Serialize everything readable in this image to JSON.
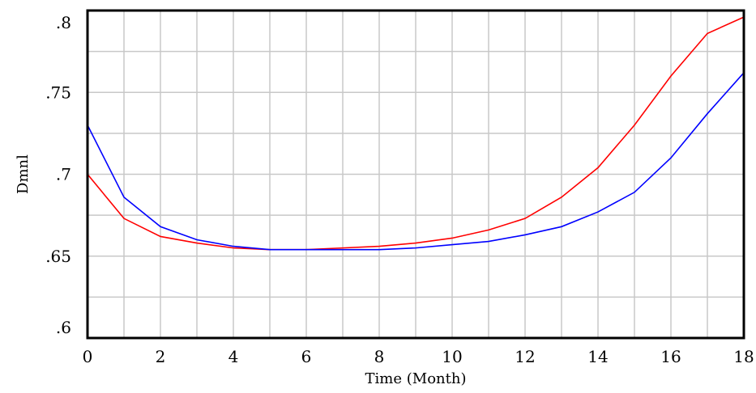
{
  "chart_data": {
    "type": "line",
    "title": "",
    "xlabel": "Time (Month)",
    "ylabel": "Dmnl",
    "xlim": [
      0,
      18
    ],
    "ylim": [
      0.6,
      0.8
    ],
    "grid": true,
    "x_ticks": [
      {
        "value": 0,
        "label": "0"
      },
      {
        "value": 2,
        "label": "2"
      },
      {
        "value": 4,
        "label": "4"
      },
      {
        "value": 6,
        "label": "6"
      },
      {
        "value": 8,
        "label": "8"
      },
      {
        "value": 10,
        "label": "10"
      },
      {
        "value": 12,
        "label": "12"
      },
      {
        "value": 14,
        "label": "14"
      },
      {
        "value": 16,
        "label": "16"
      },
      {
        "value": 18,
        "label": "18"
      }
    ],
    "y_ticks": [
      {
        "value": 0.6,
        "label": ".6"
      },
      {
        "value": 0.65,
        "label": ".65"
      },
      {
        "value": 0.7,
        "label": ".7"
      },
      {
        "value": 0.75,
        "label": ".75"
      },
      {
        "value": 0.8,
        "label": ".8"
      }
    ],
    "x": [
      0,
      1,
      2,
      3,
      4,
      5,
      6,
      7,
      8,
      9,
      10,
      11,
      12,
      13,
      14,
      15,
      16,
      17,
      18
    ],
    "series": [
      {
        "color": "#ff0000",
        "values": [
          0.7,
          0.673,
          0.662,
          0.658,
          0.655,
          0.654,
          0.654,
          0.655,
          0.656,
          0.658,
          0.661,
          0.666,
          0.673,
          0.686,
          0.704,
          0.73,
          0.76,
          0.786,
          0.796
        ]
      },
      {
        "color": "#0000ff",
        "values": [
          0.73,
          0.686,
          0.668,
          0.66,
          0.656,
          0.654,
          0.654,
          0.654,
          0.654,
          0.655,
          0.657,
          0.659,
          0.663,
          0.668,
          0.677,
          0.689,
          0.71,
          0.737,
          0.762
        ]
      }
    ]
  }
}
